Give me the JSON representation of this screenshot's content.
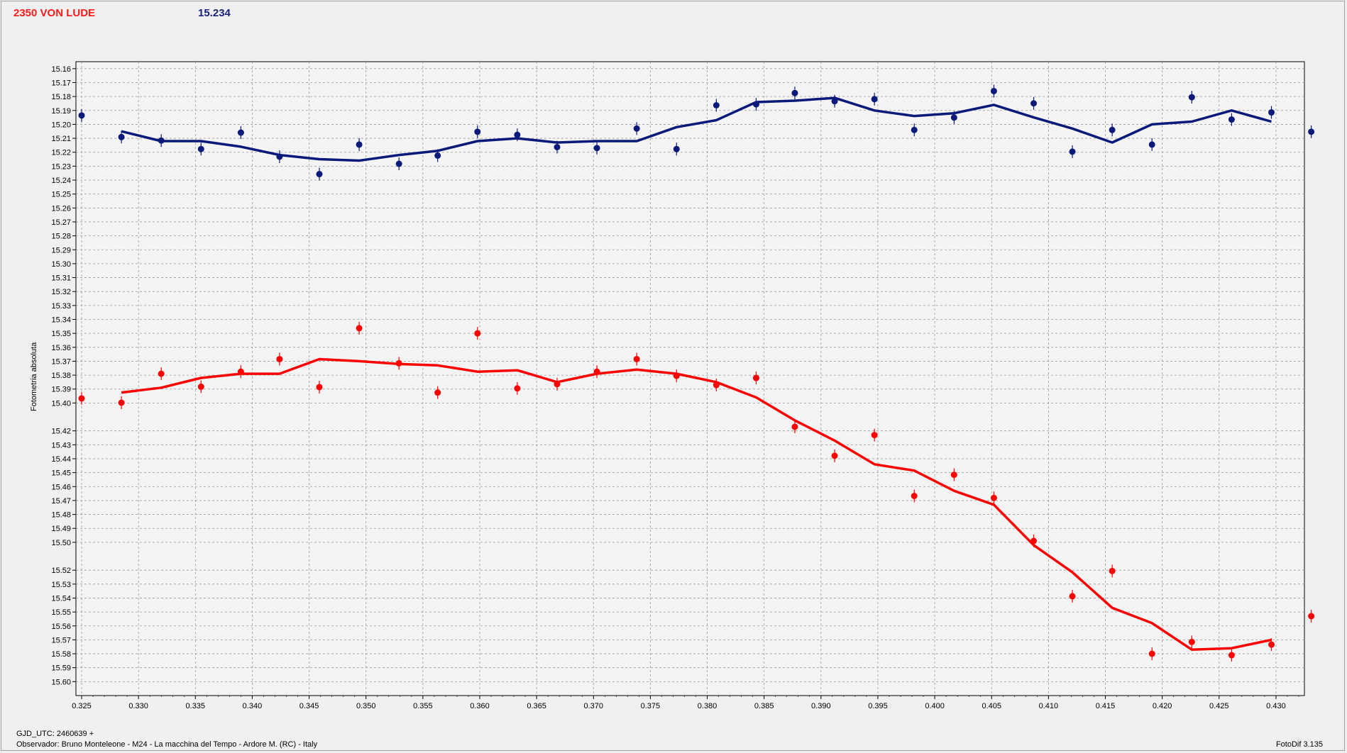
{
  "header": {
    "star_name": "2350 VON LUDE",
    "reference_mag": "15.234"
  },
  "footer": {
    "gjd": "GJD_UTC: 2460639 +",
    "observer": "Observador: Bruno Monteleone - M24 - La macchina del Tempo - Ardore M. (RC) - Italy",
    "software": "FotoDif 3.135"
  },
  "chart_data": {
    "type": "scatter",
    "title": "",
    "xlabel": "",
    "ylabel": "Fotometria absoluta",
    "xlim": [
      0.3245,
      0.4325
    ],
    "ylim": [
      15.155,
      15.61
    ],
    "y_inverted": true,
    "grid": true,
    "x_ticks": [
      "0.325",
      "0.330",
      "0.335",
      "0.340",
      "0.345",
      "0.350",
      "0.355",
      "0.360",
      "0.365",
      "0.370",
      "0.375",
      "0.380",
      "0.385",
      "0.390",
      "0.395",
      "0.400",
      "0.405",
      "0.410",
      "0.415",
      "0.420",
      "0.425",
      "0.430"
    ],
    "y_ticks": [
      "15.16",
      "15.17",
      "15.18",
      "15.19",
      "15.20",
      "15.21",
      "15.22",
      "15.23",
      "15.24",
      "15.25",
      "15.26",
      "15.27",
      "15.28",
      "15.29",
      "15.30",
      "15.31",
      "15.32",
      "15.33",
      "15.34",
      "15.35",
      "15.36",
      "15.37",
      "15.38",
      "15.39",
      "15.40",
      "15.42",
      "15.43",
      "15.44",
      "15.45",
      "15.46",
      "15.47",
      "15.48",
      "15.49",
      "15.50",
      "15.52",
      "15.53",
      "15.54",
      "15.55",
      "15.56",
      "15.57",
      "15.58",
      "15.59",
      "15.60"
    ],
    "series": [
      {
        "color": "#0a1a7a",
        "points": [
          [
            0.325,
            15.1936
          ],
          [
            0.3285,
            15.2091
          ],
          [
            0.332,
            15.2116
          ],
          [
            0.3355,
            15.2177
          ],
          [
            0.339,
            15.2059
          ],
          [
            0.3424,
            15.2232
          ],
          [
            0.3459,
            15.2357
          ],
          [
            0.3494,
            15.2145
          ],
          [
            0.3529,
            15.2283
          ],
          [
            0.3563,
            15.2224
          ],
          [
            0.3598,
            15.2053
          ],
          [
            0.3633,
            15.2075
          ],
          [
            0.3668,
            15.2163
          ],
          [
            0.3703,
            15.217
          ],
          [
            0.3738,
            15.203
          ],
          [
            0.3773,
            15.2177
          ],
          [
            0.3808,
            15.1863
          ],
          [
            0.3843,
            15.1856
          ],
          [
            0.3877,
            15.1775
          ],
          [
            0.3912,
            15.1834
          ],
          [
            0.3947,
            15.1819
          ],
          [
            0.3982,
            15.204
          ],
          [
            0.4017,
            15.1951
          ],
          [
            0.4052,
            15.1761
          ],
          [
            0.4087,
            15.1849
          ],
          [
            0.4121,
            15.2196
          ],
          [
            0.4156,
            15.204
          ],
          [
            0.4191,
            15.2145
          ],
          [
            0.4226,
            15.1805
          ],
          [
            0.4261,
            15.1965
          ],
          [
            0.4296,
            15.1914
          ],
          [
            0.4331,
            15.2053
          ]
        ],
        "trend": [
          [
            0.3285,
            15.205
          ],
          [
            0.332,
            15.212
          ],
          [
            0.3355,
            15.212
          ],
          [
            0.339,
            15.216
          ],
          [
            0.3424,
            15.222
          ],
          [
            0.3459,
            15.225
          ],
          [
            0.3494,
            15.226
          ],
          [
            0.3529,
            15.222
          ],
          [
            0.3563,
            15.219
          ],
          [
            0.3598,
            15.212
          ],
          [
            0.3633,
            15.21
          ],
          [
            0.3668,
            15.213
          ],
          [
            0.3703,
            15.212
          ],
          [
            0.3738,
            15.212
          ],
          [
            0.3773,
            15.202
          ],
          [
            0.3808,
            15.197
          ],
          [
            0.3843,
            15.184
          ],
          [
            0.3877,
            15.183
          ],
          [
            0.3912,
            15.181
          ],
          [
            0.3947,
            15.19
          ],
          [
            0.3982,
            15.194
          ],
          [
            0.4017,
            15.192
          ],
          [
            0.4052,
            15.186
          ],
          [
            0.4087,
            15.195
          ],
          [
            0.4121,
            15.203
          ],
          [
            0.4156,
            15.213
          ],
          [
            0.4191,
            15.2
          ],
          [
            0.4226,
            15.198
          ],
          [
            0.4261,
            15.19
          ],
          [
            0.4296,
            15.198
          ]
        ]
      },
      {
        "color": "#ff0000",
        "points": [
          [
            0.325,
            15.3967
          ],
          [
            0.3285,
            15.3998
          ],
          [
            0.332,
            15.379
          ],
          [
            0.3355,
            15.3883
          ],
          [
            0.339,
            15.3775
          ],
          [
            0.3424,
            15.3685
          ],
          [
            0.3459,
            15.3886
          ],
          [
            0.3494,
            15.3463
          ],
          [
            0.3529,
            15.3715
          ],
          [
            0.3563,
            15.3925
          ],
          [
            0.3598,
            15.35
          ],
          [
            0.3633,
            15.3895
          ],
          [
            0.3668,
            15.3865
          ],
          [
            0.3703,
            15.3775
          ],
          [
            0.3738,
            15.3685
          ],
          [
            0.3773,
            15.3805
          ],
          [
            0.3808,
            15.3871
          ],
          [
            0.3843,
            15.382
          ],
          [
            0.3877,
            15.4171
          ],
          [
            0.3912,
            15.4379
          ],
          [
            0.3947,
            15.423
          ],
          [
            0.3982,
            15.4667
          ],
          [
            0.4017,
            15.4515
          ],
          [
            0.4052,
            15.4681
          ],
          [
            0.4087,
            15.499
          ],
          [
            0.4121,
            15.5387
          ],
          [
            0.4156,
            15.5206
          ],
          [
            0.4191,
            15.58
          ],
          [
            0.4226,
            15.5715
          ],
          [
            0.4261,
            15.581
          ],
          [
            0.4296,
            15.5734
          ],
          [
            0.4331,
            15.553
          ]
        ],
        "trend": [
          [
            0.3285,
            15.3925
          ],
          [
            0.332,
            15.389
          ],
          [
            0.3355,
            15.382
          ],
          [
            0.339,
            15.379
          ],
          [
            0.3424,
            15.379
          ],
          [
            0.3459,
            15.3685
          ],
          [
            0.3494,
            15.37
          ],
          [
            0.3529,
            15.372
          ],
          [
            0.3563,
            15.373
          ],
          [
            0.3598,
            15.3775
          ],
          [
            0.3633,
            15.3765
          ],
          [
            0.3668,
            15.385
          ],
          [
            0.3703,
            15.379
          ],
          [
            0.3738,
            15.376
          ],
          [
            0.3773,
            15.379
          ],
          [
            0.3808,
            15.385
          ],
          [
            0.3843,
            15.396
          ],
          [
            0.3877,
            15.4125
          ],
          [
            0.3912,
            15.427
          ],
          [
            0.3947,
            15.444
          ],
          [
            0.3982,
            15.4485
          ],
          [
            0.4017,
            15.463
          ],
          [
            0.4052,
            15.473
          ],
          [
            0.4087,
            15.502
          ],
          [
            0.4121,
            15.5215
          ],
          [
            0.4156,
            15.547
          ],
          [
            0.4191,
            15.558
          ],
          [
            0.4226,
            15.577
          ],
          [
            0.4261,
            15.576
          ],
          [
            0.4296,
            15.57
          ]
        ]
      }
    ]
  }
}
